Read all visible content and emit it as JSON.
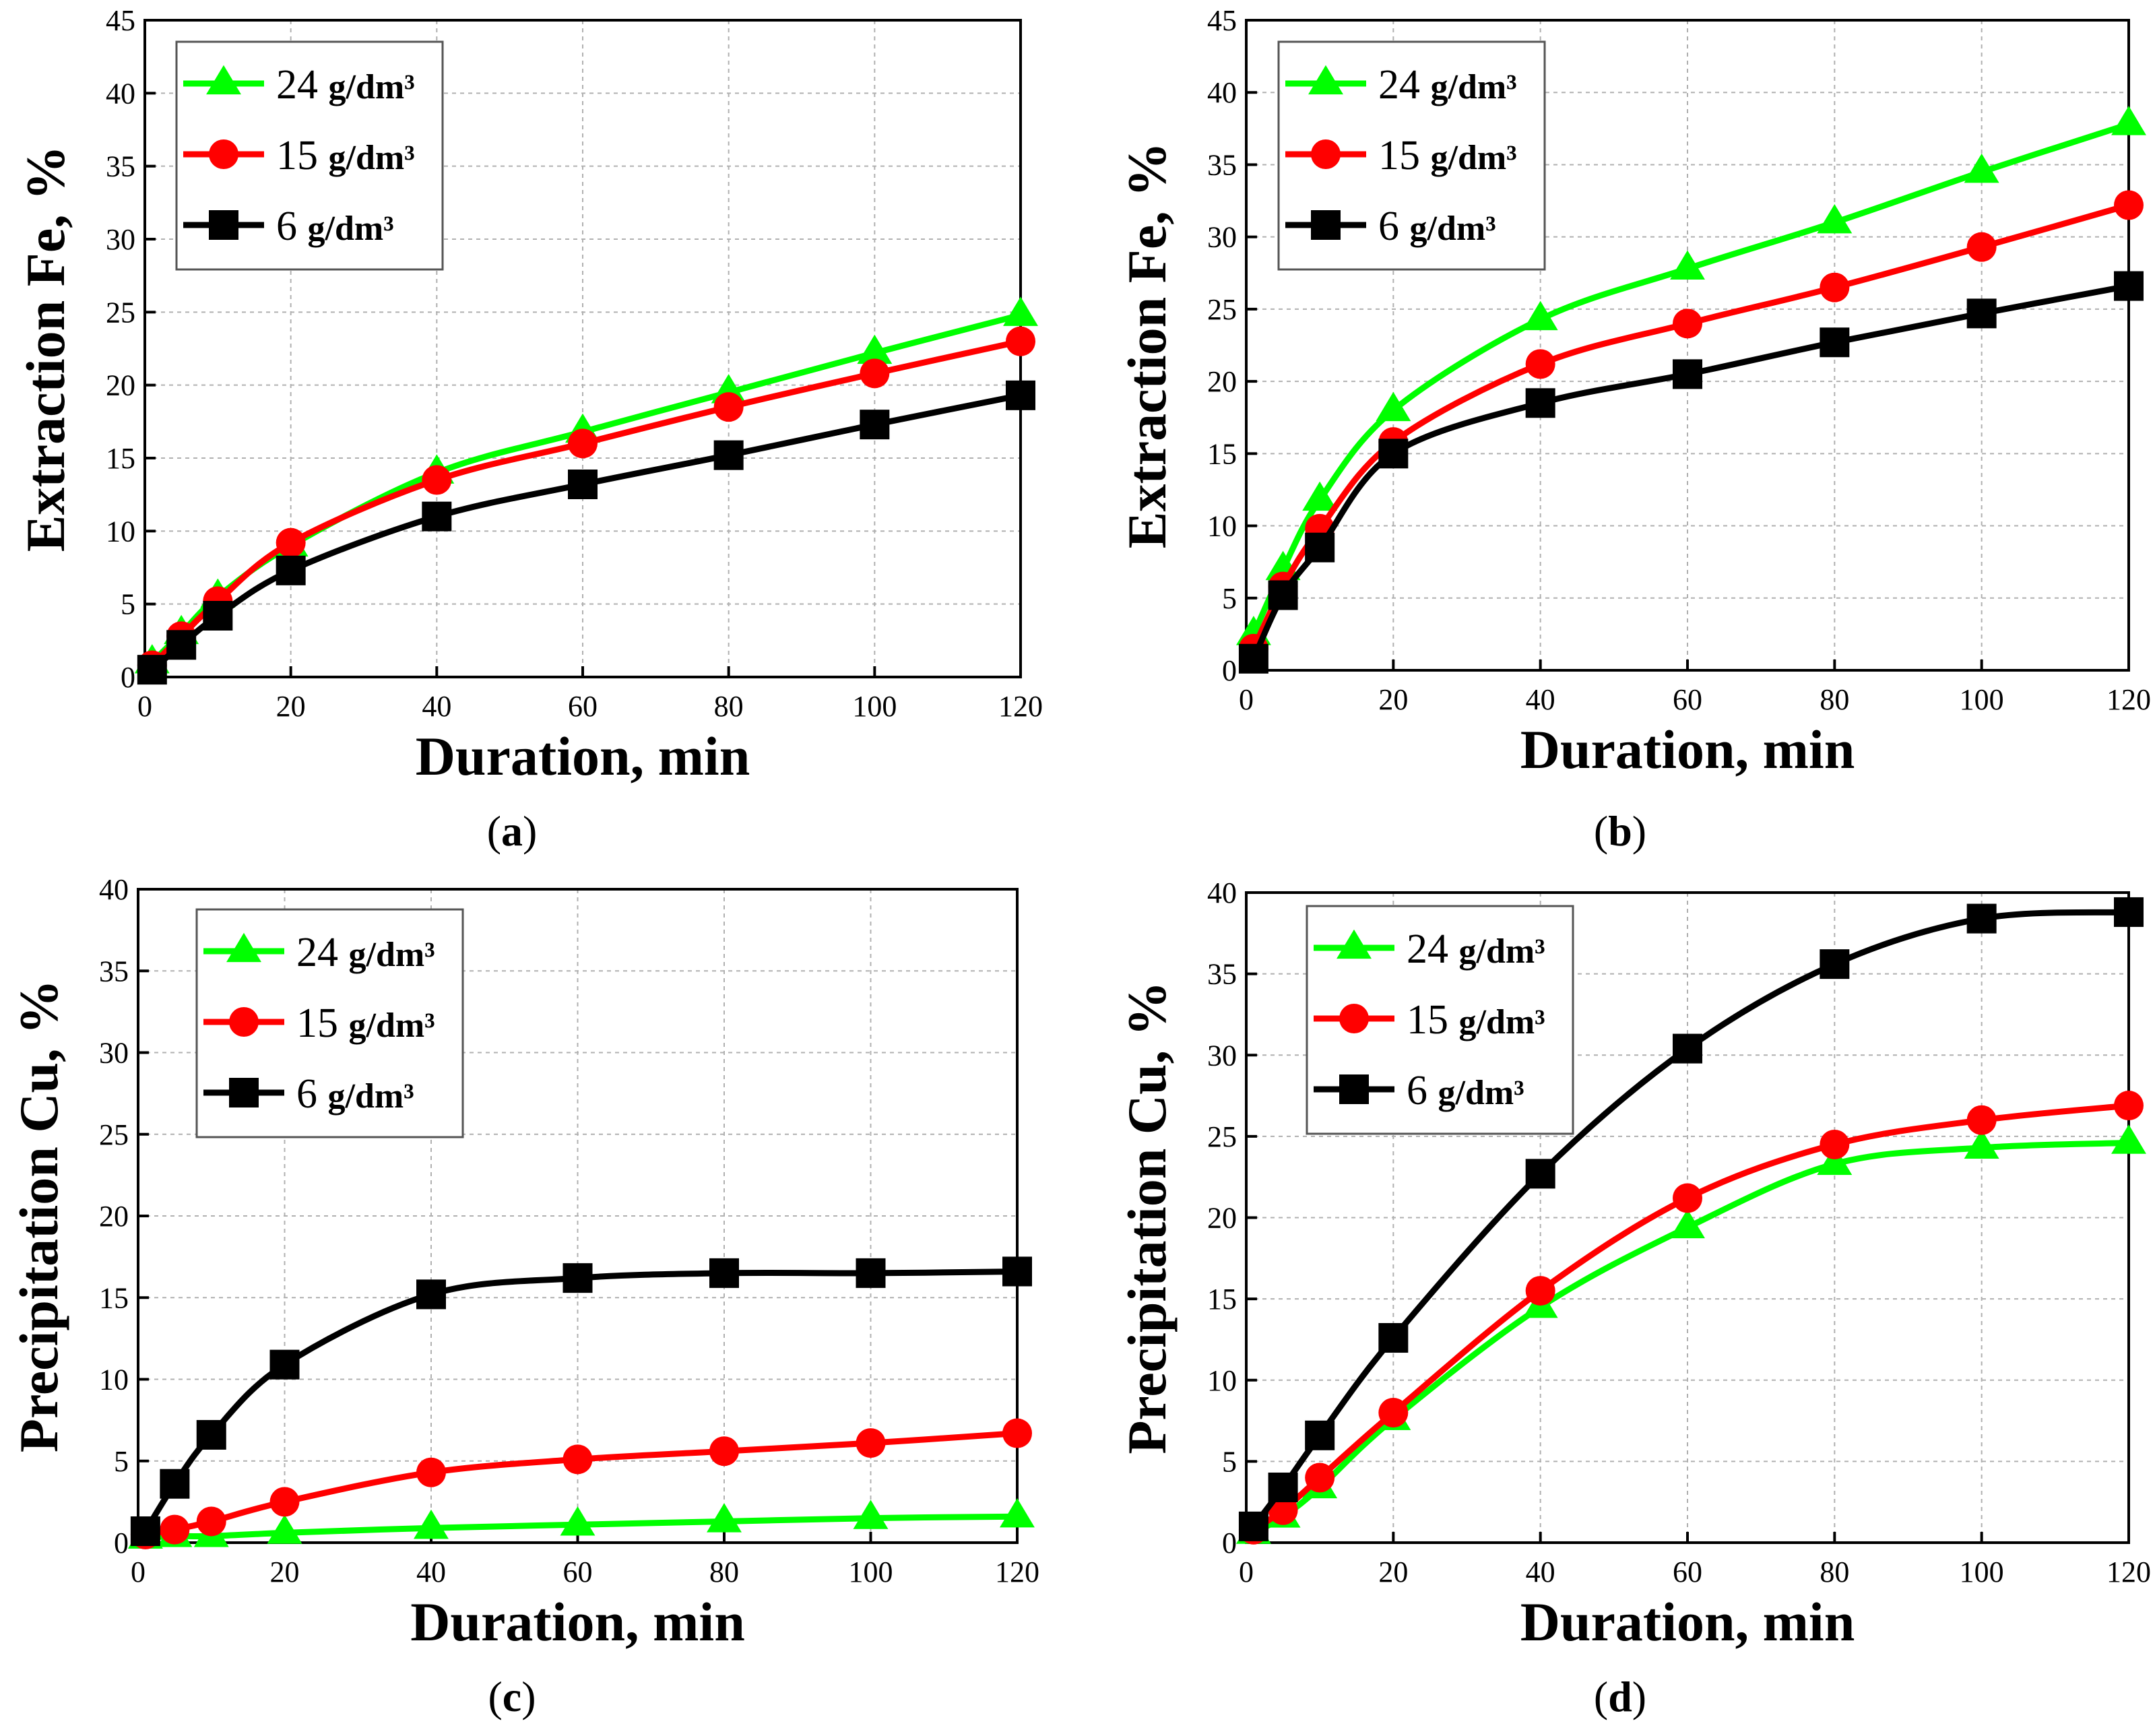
{
  "chart_data": [
    {
      "type": "line",
      "panel": "a",
      "caption_letter": "a",
      "xlabel": "Duration,  min",
      "ylabel": "Extraction Fe,  %",
      "xlim": [
        0,
        120
      ],
      "ylim": [
        0,
        45
      ],
      "xticks": [
        0,
        20,
        40,
        60,
        80,
        100,
        120
      ],
      "yticks": [
        0,
        5,
        10,
        15,
        20,
        25,
        30,
        35,
        40,
        45
      ],
      "grid": true,
      "legend_position": "top-left",
      "series": [
        {
          "name": "24",
          "unit": "g/dm³",
          "color": "#00ff00",
          "marker": "triangle",
          "x": [
            1,
            5,
            10,
            20,
            40,
            60,
            80,
            100,
            120
          ],
          "y": [
            1.0,
            3.0,
            5.5,
            9.0,
            14.0,
            16.8,
            19.5,
            22.2,
            24.8
          ]
        },
        {
          "name": "15",
          "unit": "g/dm³",
          "color": "#ff0000",
          "marker": "circle",
          "x": [
            1,
            5,
            10,
            20,
            40,
            60,
            80,
            100,
            120
          ],
          "y": [
            0.8,
            2.8,
            5.2,
            9.2,
            13.5,
            16.0,
            18.5,
            20.8,
            23.0
          ]
        },
        {
          "name": "6",
          "unit": "g/dm³",
          "color": "#000000",
          "marker": "square",
          "x": [
            1,
            5,
            10,
            20,
            40,
            60,
            80,
            100,
            120
          ],
          "y": [
            0.5,
            2.2,
            4.2,
            7.3,
            11.0,
            13.2,
            15.2,
            17.3,
            19.3
          ]
        }
      ]
    },
    {
      "type": "line",
      "panel": "b",
      "caption_letter": "b",
      "xlabel": "Duration,  min",
      "ylabel": "Extraction Fe,  %",
      "xlim": [
        0,
        120
      ],
      "ylim": [
        0,
        45
      ],
      "xticks": [
        0,
        20,
        40,
        60,
        80,
        100,
        120
      ],
      "yticks": [
        0,
        5,
        10,
        15,
        20,
        25,
        30,
        35,
        40,
        45
      ],
      "grid": true,
      "legend_position": "top-left",
      "series": [
        {
          "name": "24",
          "unit": "g/dm³",
          "color": "#00ff00",
          "marker": "triangle",
          "x": [
            1,
            5,
            10,
            20,
            40,
            60,
            80,
            100,
            120
          ],
          "y": [
            2.5,
            7.0,
            11.8,
            18.0,
            24.3,
            27.8,
            31.0,
            34.5,
            37.8
          ]
        },
        {
          "name": "15",
          "unit": "g/dm³",
          "color": "#ff0000",
          "marker": "circle",
          "x": [
            1,
            5,
            10,
            20,
            40,
            60,
            80,
            100,
            120
          ],
          "y": [
            1.5,
            5.8,
            9.8,
            15.8,
            21.2,
            24.0,
            26.5,
            29.3,
            32.2
          ]
        },
        {
          "name": "6",
          "unit": "g/dm³",
          "color": "#000000",
          "marker": "square",
          "x": [
            1,
            5,
            10,
            20,
            40,
            60,
            80,
            100,
            120
          ],
          "y": [
            0.8,
            5.2,
            8.5,
            15.0,
            18.5,
            20.5,
            22.7,
            24.7,
            26.6
          ]
        }
      ]
    },
    {
      "type": "line",
      "panel": "c",
      "caption_letter": "c",
      "xlabel": "Duration,  min",
      "ylabel": "Precipitation Cu,  %",
      "xlim": [
        0,
        120
      ],
      "ylim": [
        0,
        40
      ],
      "xticks": [
        0,
        20,
        40,
        60,
        80,
        100,
        120
      ],
      "yticks": [
        0,
        5,
        10,
        15,
        20,
        25,
        30,
        35,
        40
      ],
      "grid": true,
      "legend_position": "top-left",
      "series": [
        {
          "name": "24",
          "unit": "g/dm³",
          "color": "#00ff00",
          "marker": "triangle",
          "x": [
            1,
            5,
            10,
            20,
            40,
            60,
            80,
            100,
            120
          ],
          "y": [
            0.3,
            0.4,
            0.4,
            0.6,
            0.9,
            1.1,
            1.3,
            1.5,
            1.6
          ]
        },
        {
          "name": "15",
          "unit": "g/dm³",
          "color": "#ff0000",
          "marker": "circle",
          "x": [
            1,
            5,
            10,
            20,
            40,
            60,
            80,
            100,
            120
          ],
          "y": [
            0.5,
            0.8,
            1.3,
            2.5,
            4.3,
            5.1,
            5.6,
            6.1,
            6.7
          ]
        },
        {
          "name": "6",
          "unit": "g/dm³",
          "color": "#000000",
          "marker": "square",
          "x": [
            1,
            5,
            10,
            20,
            40,
            60,
            80,
            100,
            120
          ],
          "y": [
            0.7,
            3.6,
            6.6,
            10.9,
            15.2,
            16.2,
            16.5,
            16.5,
            16.6
          ]
        }
      ]
    },
    {
      "type": "line",
      "panel": "d",
      "caption_letter": "d",
      "xlabel": "Duration,  min",
      "ylabel": "Precipitation Cu,  %",
      "xlim": [
        0,
        120
      ],
      "ylim": [
        0,
        40
      ],
      "xticks": [
        0,
        20,
        40,
        60,
        80,
        100,
        120
      ],
      "yticks": [
        0,
        5,
        10,
        15,
        20,
        25,
        30,
        35,
        40
      ],
      "grid": true,
      "legend_position": "top-left",
      "series": [
        {
          "name": "24",
          "unit": "g/dm³",
          "color": "#00ff00",
          "marker": "triangle",
          "x": [
            1,
            5,
            10,
            20,
            40,
            60,
            80,
            100,
            120
          ],
          "y": [
            0.6,
            1.6,
            3.4,
            7.6,
            14.5,
            19.4,
            23.3,
            24.3,
            24.6
          ]
        },
        {
          "name": "15",
          "unit": "g/dm³",
          "color": "#ff0000",
          "marker": "circle",
          "x": [
            1,
            5,
            10,
            20,
            40,
            60,
            80,
            100,
            120
          ],
          "y": [
            0.8,
            2.0,
            4.0,
            8.0,
            15.5,
            21.2,
            24.5,
            26.0,
            26.9
          ]
        },
        {
          "name": "6",
          "unit": "g/dm³",
          "color": "#000000",
          "marker": "square",
          "x": [
            1,
            5,
            10,
            20,
            40,
            60,
            80,
            100,
            120
          ],
          "y": [
            1.0,
            3.4,
            6.6,
            12.6,
            22.7,
            30.4,
            35.6,
            38.4,
            38.8
          ]
        }
      ]
    }
  ]
}
